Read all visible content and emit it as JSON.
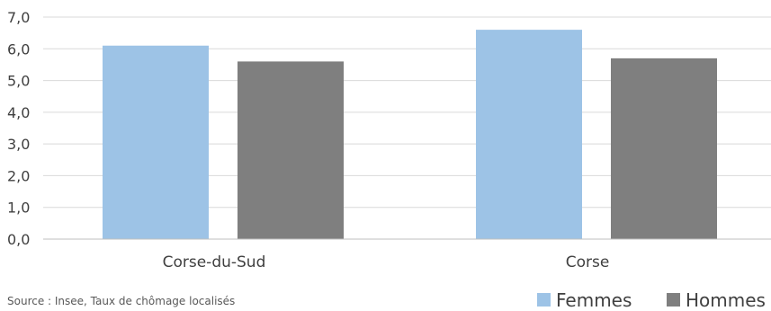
{
  "chart_data": {
    "type": "bar",
    "categories": [
      "Corse-du-Sud",
      "Corse"
    ],
    "series": [
      {
        "name": "Femmes",
        "values": [
          6.1,
          6.6
        ],
        "color": "#9dc3e6"
      },
      {
        "name": "Hommes",
        "values": [
          5.6,
          5.7
        ],
        "color": "#7f7f7f"
      }
    ],
    "ylim": [
      0,
      7
    ],
    "yticks": [
      "0,0",
      "1,0",
      "2,0",
      "3,0",
      "4,0",
      "5,0",
      "6,0",
      "7,0"
    ],
    "grid": true,
    "legend_position": "bottom-right",
    "title": "",
    "xlabel": "",
    "ylabel": ""
  },
  "source": "Source : Insee, Taux de chômage localisés"
}
